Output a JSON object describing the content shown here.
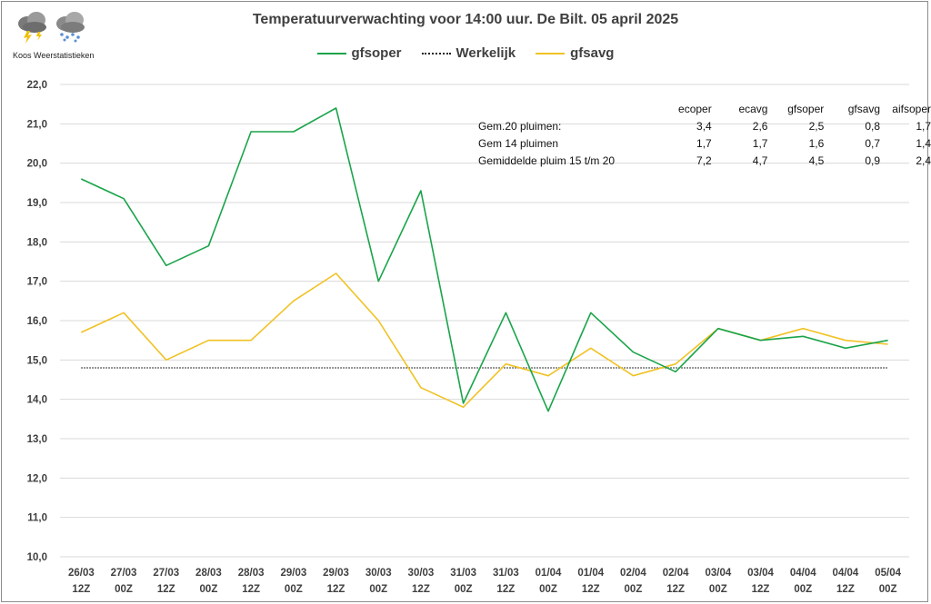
{
  "header": {
    "title": "Temperatuurverwachting voor 14:00 uur. De Bilt. 05 april 2025",
    "logo_text": "Koos Weerstatistieken"
  },
  "legend": {
    "gfsoper": "gfsoper",
    "werkelijk": "Werkelijk",
    "gfsavg": "gfsavg"
  },
  "stats_table": {
    "headers": [
      "ecoper",
      "ecavg",
      "gfsoper",
      "gfsavg",
      "aifsoper"
    ],
    "rows": [
      {
        "label": "Gem.20 pluimen:",
        "values": [
          "3,4",
          "2,6",
          "2,5",
          "0,8",
          "1,7"
        ]
      },
      {
        "label": "Gem 14 pluimen",
        "values": [
          "1,7",
          "1,7",
          "1,6",
          "0,7",
          "1,4"
        ]
      },
      {
        "label": "Gemiddelde pluim 15 t/m 20",
        "values": [
          "7,2",
          "4,7",
          "4,5",
          "0,9",
          "2,4"
        ]
      }
    ]
  },
  "colors": {
    "gfsoper": "#1aa44a",
    "gfsavg": "#f0c224",
    "werkelijk": "#222222",
    "grid": "#d9d9d9"
  },
  "chart_data": {
    "type": "line",
    "title": "Temperatuurverwachting voor 14:00 uur. De Bilt. 05 april 2025",
    "categories": [
      [
        "26/03",
        "12Z"
      ],
      [
        "27/03",
        "00Z"
      ],
      [
        "27/03",
        "12Z"
      ],
      [
        "28/03",
        "00Z"
      ],
      [
        "28/03",
        "12Z"
      ],
      [
        "29/03",
        "00Z"
      ],
      [
        "29/03",
        "12Z"
      ],
      [
        "30/03",
        "00Z"
      ],
      [
        "30/03",
        "12Z"
      ],
      [
        "31/03",
        "00Z"
      ],
      [
        "31/03",
        "12Z"
      ],
      [
        "01/04",
        "00Z"
      ],
      [
        "01/04",
        "12Z"
      ],
      [
        "02/04",
        "00Z"
      ],
      [
        "02/04",
        "12Z"
      ],
      [
        "03/04",
        "00Z"
      ],
      [
        "03/04",
        "12Z"
      ],
      [
        "04/04",
        "00Z"
      ],
      [
        "04/04",
        "12Z"
      ],
      [
        "05/04",
        "00Z"
      ]
    ],
    "series": [
      {
        "name": "gfsoper",
        "values": [
          19.6,
          19.1,
          17.4,
          17.9,
          20.8,
          20.8,
          21.4,
          17.0,
          19.3,
          13.9,
          16.2,
          13.7,
          16.2,
          15.2,
          14.7,
          15.8,
          15.5,
          15.6,
          15.3,
          15.5
        ]
      },
      {
        "name": "Werkelijk",
        "values": [
          14.8,
          14.8,
          14.8,
          14.8,
          14.8,
          14.8,
          14.8,
          14.8,
          14.8,
          14.8,
          14.8,
          14.8,
          14.8,
          14.8,
          14.8,
          14.8,
          14.8,
          14.8,
          14.8,
          14.8
        ]
      },
      {
        "name": "gfsavg",
        "values": [
          15.7,
          16.2,
          15.0,
          15.5,
          15.5,
          16.5,
          17.2,
          16.0,
          14.3,
          13.8,
          14.9,
          14.6,
          15.3,
          14.6,
          14.9,
          15.8,
          15.5,
          15.8,
          15.5,
          15.4
        ]
      }
    ],
    "ylim": [
      10.0,
      22.0
    ],
    "yticks": [
      "10,0",
      "11,0",
      "12,0",
      "13,0",
      "14,0",
      "15,0",
      "16,0",
      "17,0",
      "18,0",
      "19,0",
      "20,0",
      "21,0",
      "22,0"
    ],
    "ystep": 1.0,
    "xlabel": "",
    "ylabel": "",
    "grid": true,
    "legend_position": "top-center"
  }
}
